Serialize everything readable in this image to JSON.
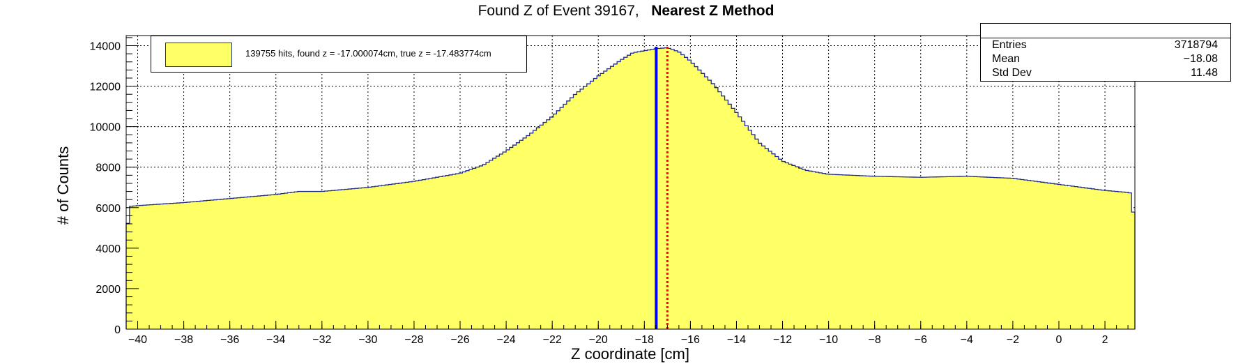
{
  "title": {
    "main": "Found Z of Event 39167,",
    "method": "Nearest Z Method"
  },
  "legend": {
    "label": "139755 hits, found z = -17.000074cm, true z = -17.483774cm",
    "fill_color": "#ffff66",
    "line_color": "#1e2a8a"
  },
  "stats": {
    "rows": [
      {
        "label": "Entries",
        "value": "3718794"
      },
      {
        "label": "Mean",
        "value": "−18.08"
      },
      {
        "label": "Std Dev",
        "value": "11.48"
      }
    ]
  },
  "chart_data": {
    "type": "area",
    "xlabel": "Z coordinate [cm]",
    "ylabel": "# of Counts",
    "xlim": [
      -40.5,
      3.3
    ],
    "ylim": [
      0,
      14500
    ],
    "xticks": [
      -40,
      -38,
      -36,
      -34,
      -32,
      -30,
      -28,
      -26,
      -24,
      -22,
      -20,
      -18,
      -16,
      -14,
      -12,
      -10,
      -8,
      -6,
      -4,
      -2,
      0,
      2
    ],
    "yticks": [
      0,
      2000,
      4000,
      6000,
      8000,
      10000,
      12000,
      14000
    ],
    "grid": true,
    "fill_color": "#ffff66",
    "line_color": "#1e2a8a",
    "x": [
      -40.5,
      -40.4,
      -40.0,
      -38.0,
      -36.0,
      -34.0,
      -33.0,
      -32.0,
      -30.0,
      -28.0,
      -26.0,
      -25.0,
      -24.0,
      -23.0,
      -22.0,
      -21.0,
      -20.0,
      -19.0,
      -18.5,
      -18.0,
      -17.5,
      -17.0,
      -16.5,
      -16.0,
      -15.0,
      -14.0,
      -13.0,
      -12.0,
      -11.0,
      -10.0,
      -9.0,
      -8.0,
      -6.0,
      -4.0,
      -2.0,
      -1.0,
      0.0,
      1.0,
      2.0,
      3.0,
      3.2,
      3.3
    ],
    "y": [
      3000,
      6050,
      6100,
      6250,
      6450,
      6650,
      6800,
      6800,
      7000,
      7300,
      7700,
      8100,
      8800,
      9600,
      10500,
      11600,
      12500,
      13300,
      13650,
      13750,
      13850,
      13900,
      13700,
      13250,
      12100,
      10700,
      9200,
      8300,
      7850,
      7650,
      7600,
      7550,
      7500,
      7550,
      7450,
      7300,
      7150,
      7000,
      6850,
      6750,
      6700,
      3300
    ],
    "markers": [
      {
        "name": "true z",
        "value": -17.483774,
        "color": "#0000ff",
        "style": "solid"
      },
      {
        "name": "found z",
        "value": -17.000074,
        "color": "#ff0000",
        "style": "dotted"
      }
    ]
  }
}
